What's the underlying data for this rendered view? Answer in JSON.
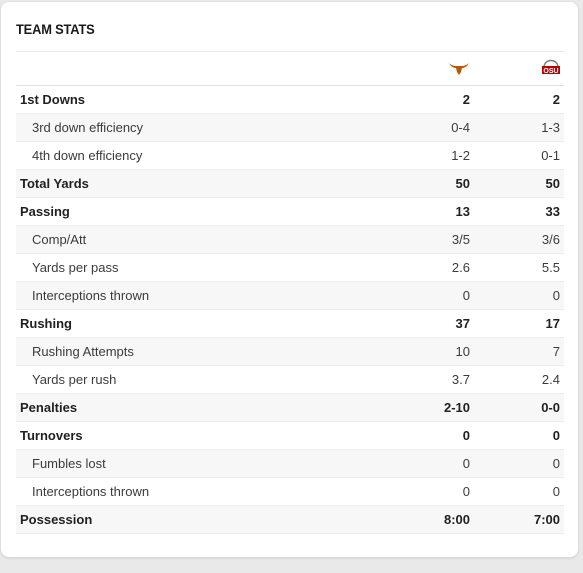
{
  "title": "TEAM STATS",
  "teams": {
    "away": {
      "logo_icon": "longhorn-icon",
      "color": "#bf5700"
    },
    "home": {
      "logo_icon": "ohio-state-icon",
      "color": "#bb0000"
    }
  },
  "rows": [
    {
      "label": "1st Downs",
      "away": "2",
      "home": "2",
      "type": "main"
    },
    {
      "label": "3rd down efficiency",
      "away": "0-4",
      "home": "1-3",
      "type": "sub"
    },
    {
      "label": "4th down efficiency",
      "away": "1-2",
      "home": "0-1",
      "type": "sub"
    },
    {
      "label": "Total Yards",
      "away": "50",
      "home": "50",
      "type": "main"
    },
    {
      "label": "Passing",
      "away": "13",
      "home": "33",
      "type": "main"
    },
    {
      "label": "Comp/Att",
      "away": "3/5",
      "home": "3/6",
      "type": "sub"
    },
    {
      "label": "Yards per pass",
      "away": "2.6",
      "home": "5.5",
      "type": "sub"
    },
    {
      "label": "Interceptions thrown",
      "away": "0",
      "home": "0",
      "type": "sub"
    },
    {
      "label": "Rushing",
      "away": "37",
      "home": "17",
      "type": "main"
    },
    {
      "label": "Rushing Attempts",
      "away": "10",
      "home": "7",
      "type": "sub"
    },
    {
      "label": "Yards per rush",
      "away": "3.7",
      "home": "2.4",
      "type": "sub"
    },
    {
      "label": "Penalties",
      "away": "2-10",
      "home": "0-0",
      "type": "main"
    },
    {
      "label": "Turnovers",
      "away": "0",
      "home": "0",
      "type": "main"
    },
    {
      "label": "Fumbles lost",
      "away": "0",
      "home": "0",
      "type": "sub"
    },
    {
      "label": "Interceptions thrown",
      "away": "0",
      "home": "0",
      "type": "sub"
    },
    {
      "label": "Possession",
      "away": "8:00",
      "home": "7:00",
      "type": "main"
    }
  ]
}
